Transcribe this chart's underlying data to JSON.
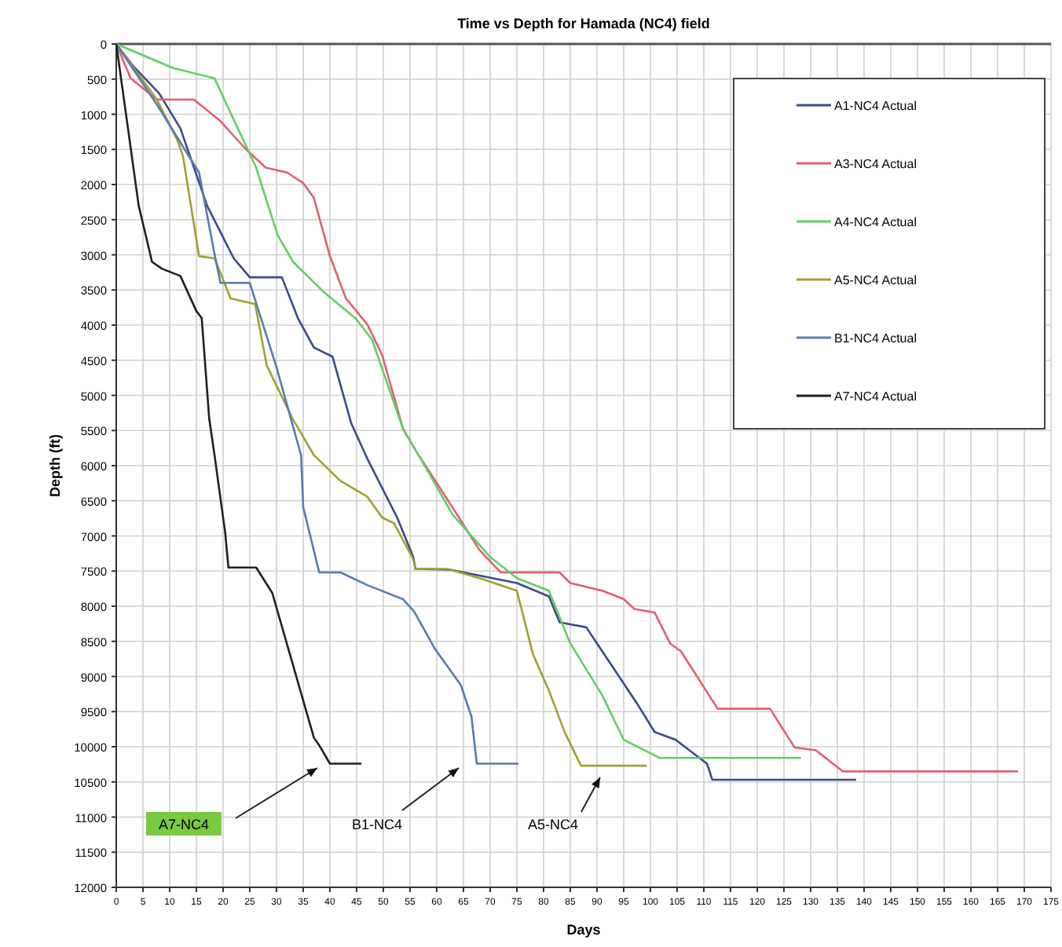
{
  "chart_data": {
    "type": "line",
    "title": "Time vs Depth for Hamada (NC4) field",
    "xlabel": "Days",
    "ylabel": "Depth (ft)",
    "xlim": [
      0,
      175
    ],
    "xticks": [
      0,
      5,
      10,
      15,
      20,
      25,
      30,
      35,
      40,
      45,
      50,
      55,
      60,
      65,
      70,
      75,
      80,
      85,
      90,
      95,
      100,
      105,
      110,
      115,
      120,
      125,
      130,
      135,
      140,
      145,
      150,
      155,
      160,
      165,
      170,
      175
    ],
    "ylim": [
      12000,
      0
    ],
    "yticks": [
      0,
      500,
      1000,
      1500,
      2000,
      2500,
      3000,
      3500,
      4000,
      4500,
      5000,
      5500,
      6000,
      6500,
      7000,
      7500,
      8000,
      8500,
      9000,
      9500,
      10000,
      10500,
      11000,
      11500,
      12000
    ],
    "grid": true,
    "legend": "top right",
    "marker": "none",
    "line_style": "solid",
    "series": [
      {
        "name": "A1-NC4 Actual",
        "color": "#3a4a8c",
        "x": [
          0,
          3,
          8,
          12,
          17,
          22,
          25,
          31,
          34,
          37,
          40.5,
          44,
          47,
          52.6,
          55.6,
          56,
          62.5,
          75,
          81,
          83,
          88,
          97.8,
          100.8,
          104.7,
          110.6,
          111.6,
          138.5
        ],
        "values": [
          0,
          300,
          700,
          1200,
          2300,
          3050,
          3320,
          3320,
          3900,
          4320,
          4450,
          5400,
          5900,
          6740,
          7300,
          7470,
          7480,
          7670,
          7860,
          8230,
          8300,
          9420,
          9790,
          9900,
          10240,
          10470,
          10470
        ]
      },
      {
        "name": "A3-NC4 Actual",
        "color": "#e06070",
        "x": [
          0,
          2.7,
          7.6,
          14.5,
          19.4,
          24.3,
          28,
          32,
          35,
          37,
          40,
          43,
          47,
          49.8,
          53.7,
          56.6,
          63,
          68,
          72,
          83,
          85,
          91,
          95,
          97,
          100.8,
          103.7,
          105.7,
          112.6,
          122.4,
          127,
          131,
          136,
          168.8
        ],
        "values": [
          0,
          490,
          790,
          790,
          1090,
          1500,
          1760,
          1830,
          1980,
          2190,
          3020,
          3620,
          3990,
          4430,
          5480,
          5850,
          6600,
          7200,
          7520,
          7520,
          7670,
          7780,
          7900,
          8040,
          8090,
          8530,
          8640,
          9460,
          9460,
          10010,
          10050,
          10350,
          10350
        ]
      },
      {
        "name": "A4-NC4 Actual",
        "color": "#60d060",
        "x": [
          0,
          10.6,
          18.4,
          21.4,
          26.2,
          30.2,
          33.1,
          39,
          44.9,
          47.9,
          53.7,
          56.6,
          63,
          70,
          75,
          81,
          85,
          91,
          95,
          101.8,
          128.2
        ],
        "values": [
          0,
          340,
          490,
          980,
          1760,
          2720,
          3100,
          3540,
          3910,
          4210,
          5480,
          5850,
          6700,
          7300,
          7600,
          7780,
          8530,
          9270,
          9900,
          10160,
          10160
        ]
      },
      {
        "name": "A5-NC4 Actual",
        "color": "#a0a030",
        "x": [
          0,
          7.6,
          11.5,
          12.5,
          15.5,
          18.4,
          21.4,
          26,
          28.2,
          33,
          37,
          42,
          47,
          49.8,
          52,
          55.6,
          56,
          62,
          68,
          75,
          78,
          81,
          84,
          87,
          99.3
        ],
        "values": [
          0,
          790,
          1380,
          1600,
          3020,
          3050,
          3620,
          3700,
          4580,
          5330,
          5850,
          6220,
          6440,
          6740,
          6820,
          7330,
          7470,
          7470,
          7600,
          7780,
          8680,
          9200,
          9800,
          10270,
          10270
        ]
      },
      {
        "name": "B1-NC4 Actual",
        "color": "#5a7ab0",
        "x": [
          0,
          7.6,
          15.5,
          18.4,
          19.5,
          25,
          30,
          34.6,
          35,
          38,
          42,
          47,
          53.7,
          55.8,
          59.6,
          64.5,
          66.5,
          67.5,
          75.3
        ],
        "values": [
          0,
          860,
          1830,
          2990,
          3400,
          3400,
          4600,
          5850,
          6590,
          7520,
          7520,
          7700,
          7900,
          8080,
          8600,
          9120,
          9570,
          10240,
          10240
        ]
      },
      {
        "name": "A7-NC4 Actual",
        "color": "#202020",
        "x": [
          0,
          4.2,
          6.7,
          8.6,
          12,
          15,
          16,
          17.4,
          18.4,
          20.4,
          21,
          26.2,
          29.2,
          37,
          38,
          40,
          45.9
        ],
        "values": [
          0,
          2300,
          3100,
          3200,
          3300,
          3800,
          3900,
          5330,
          5850,
          6960,
          7450,
          7450,
          7810,
          9870,
          9980,
          10240,
          10240
        ]
      }
    ],
    "annotations": [
      "A7-NC4",
      "B1-NC4",
      "A5-NC4"
    ]
  }
}
